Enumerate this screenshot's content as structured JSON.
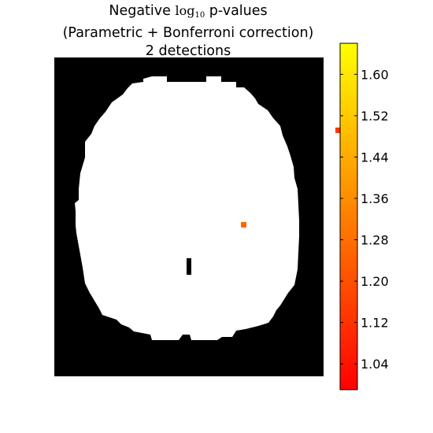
{
  "figure": {
    "title_line1_prefix": "Negative ",
    "title_line1_math": "log",
    "title_line1_sub": "10",
    "title_line1_suffix": " p-values",
    "title_line2": "(Parametric + Bonferroni correction)",
    "title_line3": "2 detections"
  },
  "chart_data": {
    "type": "heatmap",
    "title": "Negative log10 p-values (Parametric + Bonferroni correction) 2 detections",
    "description_background": "brain mask slice: white = inside mask, black = outside",
    "colors": {
      "outside_mask": "#000000",
      "inside_mask": "#ffffff"
    },
    "detections": [
      {
        "id": 1,
        "grid_col": 60,
        "grid_row": 15,
        "value": 1.14
      },
      {
        "id": 2,
        "grid_col": 40,
        "grid_row": 35,
        "value": 1.26
      }
    ],
    "colorbar": {
      "colormap": "autumn",
      "color_min": "#ff0000",
      "color_max": "#ffff00",
      "vmin": 0.99,
      "vmax": 1.66,
      "ticks": [
        1.04,
        1.12,
        1.2,
        1.28,
        1.36,
        1.44,
        1.52,
        1.6
      ],
      "tick_labels": [
        "1.04",
        "1.12",
        "1.20",
        "1.28",
        "1.36",
        "1.44",
        "1.52",
        "1.60"
      ]
    }
  }
}
